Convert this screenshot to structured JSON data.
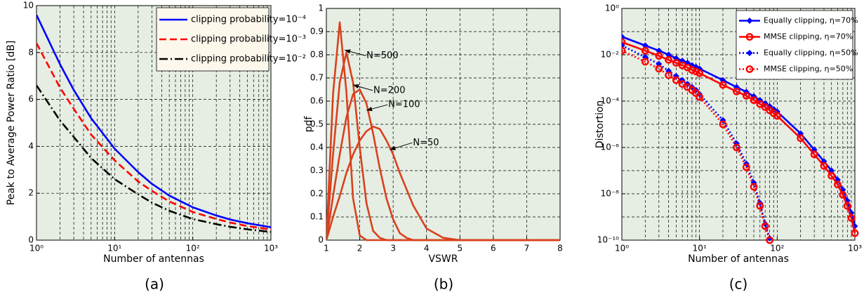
{
  "chart_data": [
    {
      "type": "line",
      "xscale": "log",
      "caption": "(a)",
      "xlabel": "Number of antennas",
      "ylabel": "Peak to Average Power Ratio [dB]",
      "x": [
        1,
        2,
        3,
        5,
        10,
        20,
        30,
        50,
        100,
        200,
        300,
        500,
        1000
      ],
      "xlim": [
        1,
        1000
      ],
      "xticks": [
        {
          "value": 1,
          "label": "10⁰"
        },
        {
          "value": 10,
          "label": "10¹"
        },
        {
          "value": 100,
          "label": "10²"
        },
        {
          "value": 1000,
          "label": "10³"
        }
      ],
      "xminorticks": [
        2,
        3,
        4,
        5,
        6,
        7,
        8,
        9,
        20,
        30,
        40,
        50,
        60,
        70,
        80,
        90,
        200,
        300,
        400,
        500,
        600,
        700,
        800,
        900
      ],
      "ylim": [
        0,
        10
      ],
      "yticks": [
        0,
        2,
        4,
        6,
        8,
        10
      ],
      "grid": true,
      "background": "#e6eee3",
      "legend": "upper right",
      "legend_background": "#fdf8ec",
      "series": [
        {
          "name": "clipping probability=10⁻⁴",
          "color": "#0000ff",
          "dash": "solid",
          "values": [
            9.6,
            7.5,
            6.4,
            5.2,
            3.9,
            2.9,
            2.4,
            1.9,
            1.4,
            1.05,
            0.88,
            0.72,
            0.55
          ]
        },
        {
          "name": "clipping probability=10⁻³",
          "color": "#ff0000",
          "dash": "dashed",
          "values": [
            8.4,
            6.5,
            5.6,
            4.5,
            3.4,
            2.5,
            2.1,
            1.65,
            1.2,
            0.9,
            0.75,
            0.6,
            0.45
          ]
        },
        {
          "name": "clipping probability=10⁻²",
          "color": "#000000",
          "dash": "dashdot",
          "values": [
            6.6,
            5.1,
            4.4,
            3.5,
            2.6,
            1.95,
            1.6,
            1.25,
            0.9,
            0.68,
            0.57,
            0.46,
            0.35
          ]
        }
      ]
    },
    {
      "type": "line",
      "caption": "(b)",
      "xlabel": "VSWR",
      "ylabel": "pdf",
      "x": [
        1,
        1.2,
        1.4,
        1.6,
        1.8,
        2,
        2.2,
        2.4,
        2.6,
        2.8,
        3,
        3.2,
        3.4,
        3.6,
        3.8,
        4,
        4.5,
        5,
        6,
        8
      ],
      "xlim": [
        1,
        8
      ],
      "xticks": [
        1,
        2,
        3,
        4,
        5,
        6,
        7,
        8
      ],
      "ylim": [
        0,
        1
      ],
      "yticks": [
        0,
        0.1,
        0.2,
        0.3,
        0.4,
        0.5,
        0.6,
        0.7,
        0.8,
        0.9,
        1
      ],
      "grid": true,
      "background": "#e6eee3",
      "series": [
        {
          "color": "#d9411e",
          "dash": "solid",
          "values": [
            0,
            0.63,
            0.94,
            0.64,
            0.18,
            0.02,
            0,
            0,
            0,
            0,
            0,
            0,
            0,
            0,
            0,
            0,
            0,
            0,
            0,
            0
          ]
        },
        {
          "color": "#d9411e",
          "dash": "solid",
          "values": [
            0,
            0.37,
            0.68,
            0.81,
            0.68,
            0.4,
            0.16,
            0.04,
            0.01,
            0,
            0,
            0,
            0,
            0,
            0,
            0,
            0,
            0,
            0,
            0
          ]
        },
        {
          "color": "#d9411e",
          "dash": "solid",
          "values": [
            0,
            0.19,
            0.37,
            0.53,
            0.63,
            0.65,
            0.59,
            0.46,
            0.31,
            0.18,
            0.09,
            0.03,
            0.01,
            0,
            0,
            0,
            0,
            0,
            0,
            0
          ]
        },
        {
          "color": "#d9411e",
          "dash": "solid",
          "values": [
            0,
            0.1,
            0.19,
            0.29,
            0.37,
            0.43,
            0.47,
            0.49,
            0.48,
            0.43,
            0.37,
            0.29,
            0.22,
            0.15,
            0.1,
            0.05,
            0.01,
            0,
            0,
            0
          ]
        }
      ],
      "annotations": [
        {
          "text": "N=500",
          "x": 1.55,
          "y": 0.82
        },
        {
          "text": "N=200",
          "x": 1.8,
          "y": 0.67
        },
        {
          "text": "N=100",
          "x": 2.2,
          "y": 0.56
        },
        {
          "text": "N=50",
          "x": 2.9,
          "y": 0.39
        }
      ]
    },
    {
      "type": "line",
      "xscale": "log",
      "yscale": "log",
      "caption": "(c)",
      "xlabel": "Number of antennas",
      "ylabel": "Distortion",
      "x": [
        1,
        2,
        3,
        4,
        5,
        6,
        7,
        8,
        9,
        10,
        20,
        30,
        40,
        50,
        60,
        70,
        80,
        90,
        100,
        200,
        300,
        400,
        500,
        600,
        700,
        800,
        900,
        1000
      ],
      "xlim": [
        1,
        1000
      ],
      "xticks": [
        {
          "value": 1,
          "label": "10⁰"
        },
        {
          "value": 10,
          "label": "10¹"
        },
        {
          "value": 100,
          "label": "10²"
        },
        {
          "value": 1000,
          "label": "10³"
        }
      ],
      "xminorticks": [
        2,
        3,
        4,
        5,
        6,
        7,
        8,
        9,
        20,
        30,
        40,
        50,
        60,
        70,
        80,
        90,
        200,
        300,
        400,
        500,
        600,
        700,
        800,
        900
      ],
      "ylim": [
        1e-10,
        1
      ],
      "yticks": [
        {
          "value": 1e-10,
          "label": "10⁻¹⁰"
        },
        {
          "value": 1e-08,
          "label": "10⁻⁸"
        },
        {
          "value": 1e-06,
          "label": "10⁻⁶"
        },
        {
          "value": 0.0001,
          "label": "10⁻⁴"
        },
        {
          "value": 0.01,
          "label": "10⁻²"
        },
        {
          "value": 1,
          "label": "10⁰"
        }
      ],
      "yminorticks": [
        1e-09,
        1e-07,
        1e-05,
        0.001,
        0.1
      ],
      "grid": true,
      "background": "#e6eee3",
      "legend": "upper right",
      "legend_background": "#ffffff",
      "series": [
        {
          "name": "Equally clipping, η=70%",
          "color": "#0000ff",
          "dash": "solid",
          "marker": "diamond",
          "values": [
            0.06,
            0.025,
            0.015,
            0.01,
            0.007,
            0.0055,
            0.0045,
            0.0035,
            0.003,
            0.0025,
            0.0008,
            0.0004,
            0.00025,
            0.00016,
            0.00011,
            8e-05,
            6e-05,
            4.5e-05,
            3.5e-05,
            4e-06,
            8e-07,
            2.5e-07,
            1e-07,
            4e-08,
            1.5e-08,
            5e-09,
            1.5e-09,
            4e-10
          ]
        },
        {
          "name": "MMSE clipping, η=70%",
          "color": "#ff0000",
          "dash": "solid",
          "marker": "circle",
          "values": [
            0.035,
            0.015,
            0.009,
            0.006,
            0.0045,
            0.0035,
            0.0028,
            0.0022,
            0.0019,
            0.0016,
            0.0005,
            0.00026,
            0.00017,
            0.00011,
            7.5e-05,
            5.5e-05,
            4e-05,
            3e-05,
            2.3e-05,
            2.5e-06,
            5e-07,
            1.6e-07,
            6e-08,
            2.5e-08,
            9e-09,
            3e-09,
            9e-10,
            2e-10
          ]
        },
        {
          "name": "Equally clipping, η=50%",
          "color": "#0000ff",
          "dash": "dotted",
          "marker": "diamond",
          "values": [
            0.025,
            0.008,
            0.004,
            0.002,
            0.0012,
            0.0008,
            0.00055,
            0.0004,
            0.0003,
            0.0002,
            1.5e-05,
            1.5e-06,
            2e-07,
            3e-08,
            4e-09,
            5e-10,
            1.2e-10,
            null,
            null,
            null,
            null,
            null,
            null,
            null,
            null,
            null,
            null,
            null
          ]
        },
        {
          "name": "MMSE clipping, η=50%",
          "color": "#ff0000",
          "dash": "dotted",
          "marker": "circle",
          "values": [
            0.015,
            0.005,
            0.0025,
            0.0013,
            0.0008,
            0.00055,
            0.0004,
            0.0003,
            0.00022,
            0.00015,
            1e-05,
            1e-06,
            1.4e-07,
            2e-08,
            3e-09,
            4e-10,
            1e-10,
            null,
            null,
            null,
            null,
            null,
            null,
            null,
            null,
            null,
            null,
            null
          ]
        }
      ]
    }
  ]
}
